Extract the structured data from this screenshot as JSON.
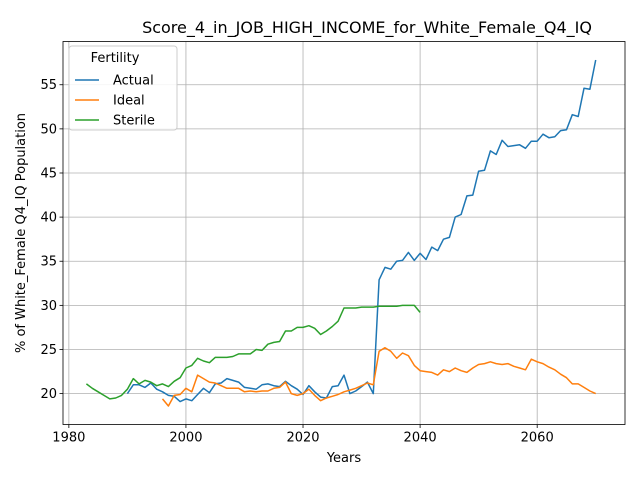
{
  "chart_data": {
    "type": "line",
    "title": "Score_4_in_JOB_HIGH_INCOME_for_White_Female_Q4_IQ",
    "xlabel": "Years",
    "ylabel": "% of White_Female Q4_IQ Population",
    "xlim": [
      1979,
      2075
    ],
    "ylim": [
      16.5,
      59.9
    ],
    "xticks": [
      1980,
      2000,
      2020,
      2040,
      2060
    ],
    "yticks": [
      20,
      25,
      30,
      35,
      40,
      45,
      50,
      55
    ],
    "grid": true,
    "legend": {
      "title": "Fertility",
      "placement": "top-left"
    },
    "series": [
      {
        "name": "Actual",
        "color": "#1f77b4",
        "x": [
          1990,
          1991,
          1992,
          1993,
          1994,
          1995,
          1996,
          1997,
          1998,
          1999,
          2000,
          2001,
          2002,
          2003,
          2004,
          2005,
          2006,
          2007,
          2008,
          2009,
          2010,
          2011,
          2012,
          2013,
          2014,
          2015,
          2016,
          2017,
          2018,
          2019,
          2020,
          2021,
          2022,
          2023,
          2024,
          2025,
          2026,
          2027,
          2028,
          2029,
          2030,
          2031,
          2032,
          2033,
          2034,
          2035,
          2036,
          2037,
          2038,
          2039,
          2040,
          2041,
          2042,
          2043,
          2044,
          2045,
          2046,
          2047,
          2048,
          2049,
          2050,
          2051,
          2052,
          2053,
          2054,
          2055,
          2056,
          2057,
          2058,
          2059,
          2060,
          2061,
          2062,
          2063,
          2064,
          2065,
          2066,
          2067,
          2068,
          2069,
          2070
        ],
        "values": [
          20.0,
          21.0,
          21.0,
          20.7,
          21.2,
          20.5,
          20.2,
          19.8,
          19.7,
          19.1,
          19.4,
          19.2,
          19.9,
          20.6,
          20.1,
          21.1,
          21.2,
          21.7,
          21.5,
          21.3,
          20.7,
          20.6,
          20.5,
          21.0,
          21.1,
          20.9,
          20.8,
          21.4,
          20.9,
          20.5,
          19.9,
          20.9,
          20.2,
          19.6,
          19.5,
          20.8,
          20.9,
          22.1,
          20.0,
          20.3,
          20.8,
          21.3,
          20.0,
          32.9,
          34.3,
          34.1,
          35.0,
          35.1,
          36.0,
          35.1,
          35.9,
          35.2,
          36.6,
          36.2,
          37.5,
          37.7,
          40.0,
          40.3,
          42.4,
          42.5,
          45.2,
          45.3,
          47.5,
          47.1,
          48.7,
          48.0,
          48.1,
          48.2,
          47.8,
          48.6,
          48.6,
          49.4,
          49.0,
          49.1,
          49.8,
          49.9,
          51.6,
          51.4,
          54.6,
          54.5,
          57.8
        ]
      },
      {
        "name": "Ideal",
        "color": "#ff7f0e",
        "x": [
          1996,
          1997,
          1998,
          1999,
          2000,
          2001,
          2002,
          2003,
          2004,
          2005,
          2006,
          2007,
          2008,
          2009,
          2010,
          2011,
          2012,
          2013,
          2014,
          2015,
          2016,
          2017,
          2018,
          2019,
          2020,
          2021,
          2022,
          2023,
          2024,
          2025,
          2026,
          2027,
          2028,
          2029,
          2030,
          2031,
          2032,
          2033,
          2034,
          2035,
          2036,
          2037,
          2038,
          2039,
          2040,
          2041,
          2042,
          2043,
          2044,
          2045,
          2046,
          2047,
          2048,
          2049,
          2050,
          2051,
          2052,
          2053,
          2054,
          2055,
          2056,
          2057,
          2058,
          2059,
          2060,
          2061,
          2062,
          2063,
          2064,
          2065,
          2066,
          2067,
          2068,
          2069,
          2070
        ],
        "values": [
          19.4,
          18.6,
          19.8,
          19.9,
          20.6,
          20.2,
          22.1,
          21.7,
          21.3,
          21.2,
          20.9,
          20.6,
          20.6,
          20.6,
          20.2,
          20.3,
          20.2,
          20.3,
          20.3,
          20.6,
          20.7,
          21.3,
          20.0,
          19.8,
          20.0,
          20.5,
          19.8,
          19.2,
          19.5,
          19.7,
          19.9,
          20.2,
          20.4,
          20.6,
          20.9,
          21.2,
          21.0,
          24.8,
          25.2,
          24.8,
          24.0,
          24.6,
          24.3,
          23.2,
          22.6,
          22.5,
          22.4,
          22.1,
          22.7,
          22.5,
          22.9,
          22.6,
          22.4,
          22.9,
          23.3,
          23.4,
          23.6,
          23.4,
          23.3,
          23.4,
          23.1,
          22.9,
          22.7,
          23.9,
          23.6,
          23.4,
          23.0,
          22.7,
          22.2,
          21.8,
          21.1,
          21.1,
          20.7,
          20.3,
          20.0
        ]
      },
      {
        "name": "Sterile",
        "color": "#2ca02c",
        "x": [
          1983,
          1984,
          1985,
          1986,
          1987,
          1988,
          1989,
          1990,
          1991,
          1992,
          1993,
          1994,
          1995,
          1996,
          1997,
          1998,
          1999,
          2000,
          2001,
          2002,
          2003,
          2004,
          2005,
          2006,
          2007,
          2008,
          2009,
          2010,
          2011,
          2012,
          2013,
          2014,
          2015,
          2016,
          2017,
          2018,
          2019,
          2020,
          2021,
          2022,
          2023,
          2024,
          2025,
          2026,
          2027,
          2028,
          2029,
          2030,
          2031,
          2032,
          2033,
          2034,
          2035,
          2036,
          2037,
          2038,
          2039,
          2040
        ],
        "values": [
          21.1,
          20.6,
          20.2,
          19.8,
          19.4,
          19.5,
          19.8,
          20.5,
          21.7,
          21.1,
          21.5,
          21.3,
          20.9,
          21.1,
          20.8,
          21.4,
          21.8,
          22.9,
          23.2,
          24.0,
          23.7,
          23.5,
          24.1,
          24.1,
          24.1,
          24.2,
          24.5,
          24.5,
          24.5,
          25.0,
          24.9,
          25.6,
          25.8,
          25.9,
          27.1,
          27.1,
          27.5,
          27.5,
          27.7,
          27.4,
          26.7,
          27.1,
          27.6,
          28.2,
          29.7,
          29.7,
          29.7,
          29.8,
          29.8,
          29.8,
          29.9,
          29.9,
          29.9,
          29.9,
          30.0,
          30.0,
          30.0,
          29.2
        ]
      }
    ]
  }
}
